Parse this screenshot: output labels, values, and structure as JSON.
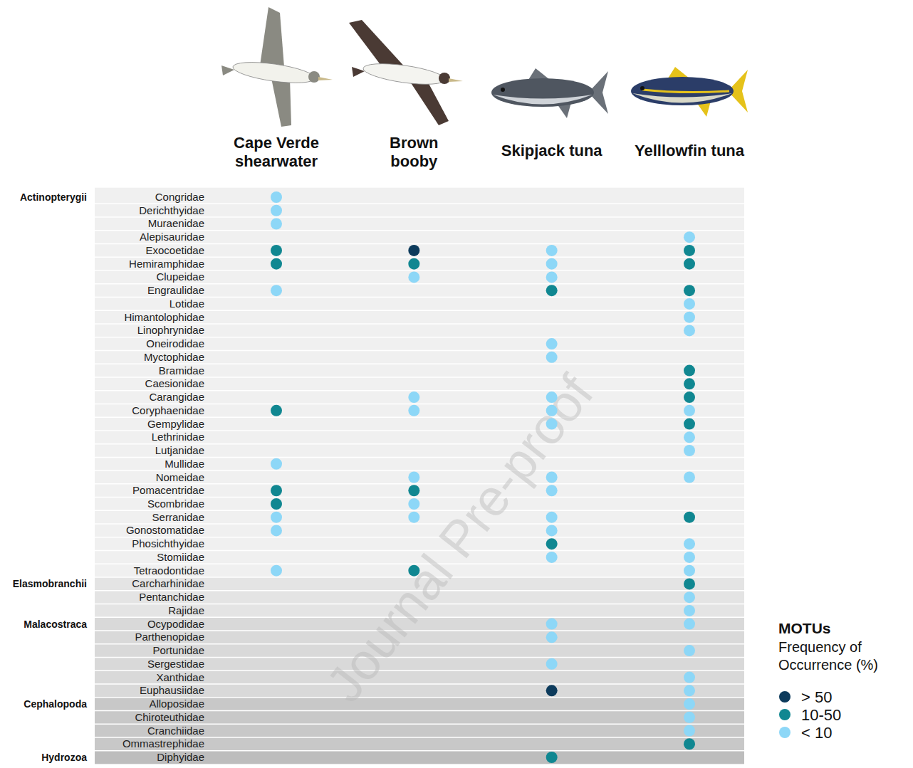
{
  "chart_data": {
    "type": "dot_matrix",
    "watermark": "Journal Pre-proof",
    "legend": "bottom-right",
    "legend_title": "MOTUs",
    "legend_subtitle": "Frequency of Occurrence (%)",
    "levels": [
      {
        "label": "> 50",
        "color": "#0d3b5c"
      },
      {
        "label": "10-50",
        "color": "#108791"
      },
      {
        "label": "< 10",
        "color": "#8dd7f7"
      }
    ],
    "groups": [
      {
        "name": "Actinopterygii",
        "categories": [
          "Congridae",
          "Derichthyidae",
          "Muraenidae",
          "Alepisauridae",
          "Exocoetidae",
          "Hemiramphidae",
          "Clupeidae",
          "Engraulidae",
          "Lotidae",
          "Himantolophidae",
          "Linophrynidae",
          "Oneirodidae",
          "Myctophidae",
          "Bramidae",
          "Caesionidae",
          "Carangidae",
          "Coryphaenidae",
          "Gempylidae",
          "Lethrinidae",
          "Lutjanidae",
          "Mullidae",
          "Nomeidae",
          "Pomacentridae",
          "Scombridae",
          "Serranidae",
          "Gonostomatidae",
          "Phosichthyidae",
          "Stomiidae",
          "Tetraodontidae"
        ]
      },
      {
        "name": "Elasmobranchii",
        "categories": [
          "Carcharhinidae",
          "Pentanchidae",
          "Rajidae"
        ]
      },
      {
        "name": "Malacostraca",
        "categories": [
          "Ocypodidae",
          "Parthenopidae",
          "Portunidae",
          "Sergestidae",
          "Xanthidae",
          "Euphausiidae"
        ]
      },
      {
        "name": "Cephalopoda",
        "categories": [
          "Alloposidae",
          "Chiroteuthidae",
          "Cranchiidae",
          "Ommastrephidae"
        ]
      },
      {
        "name": "Hydrozoa",
        "categories": [
          "Diphyidae"
        ]
      }
    ],
    "series": [
      {
        "name": "Cape Verde shearwater",
        "values": [
          "< 10",
          "< 10",
          "< 10",
          null,
          "10-50",
          "10-50",
          null,
          "< 10",
          null,
          null,
          null,
          null,
          null,
          null,
          null,
          null,
          "10-50",
          null,
          null,
          null,
          "< 10",
          null,
          "10-50",
          "10-50",
          "< 10",
          "< 10",
          null,
          null,
          "< 10",
          null,
          null,
          null,
          null,
          null,
          null,
          null,
          null,
          null,
          null,
          null,
          null,
          null,
          null
        ]
      },
      {
        "name": "Brown booby",
        "values": [
          null,
          null,
          null,
          null,
          "> 50",
          "10-50",
          "< 10",
          null,
          null,
          null,
          null,
          null,
          null,
          null,
          null,
          "< 10",
          "< 10",
          null,
          null,
          null,
          null,
          "< 10",
          "10-50",
          "< 10",
          "< 10",
          null,
          null,
          null,
          "10-50",
          null,
          null,
          null,
          null,
          null,
          null,
          null,
          null,
          null,
          null,
          null,
          null,
          null,
          null
        ]
      },
      {
        "name": "Skipjack tuna",
        "values": [
          null,
          null,
          null,
          null,
          "< 10",
          "< 10",
          "< 10",
          "10-50",
          null,
          null,
          null,
          "< 10",
          "< 10",
          null,
          null,
          "< 10",
          "< 10",
          "< 10",
          null,
          null,
          null,
          "< 10",
          "< 10",
          null,
          "< 10",
          "< 10",
          "10-50",
          "< 10",
          null,
          null,
          null,
          null,
          "< 10",
          "< 10",
          null,
          "< 10",
          null,
          "> 50",
          null,
          null,
          null,
          null,
          "10-50"
        ]
      },
      {
        "name": "Yelllowfin tuna",
        "values": [
          null,
          null,
          null,
          "< 10",
          "10-50",
          "10-50",
          null,
          "10-50",
          "< 10",
          "< 10",
          "< 10",
          null,
          null,
          "10-50",
          "10-50",
          "10-50",
          "< 10",
          "10-50",
          "< 10",
          "< 10",
          null,
          "< 10",
          null,
          null,
          "10-50",
          null,
          "< 10",
          "< 10",
          "< 10",
          "10-50",
          "< 10",
          "< 10",
          "< 10",
          null,
          "< 10",
          null,
          "< 10",
          "< 10",
          "< 10",
          "< 10",
          "< 10",
          "10-50",
          null
        ]
      }
    ]
  }
}
